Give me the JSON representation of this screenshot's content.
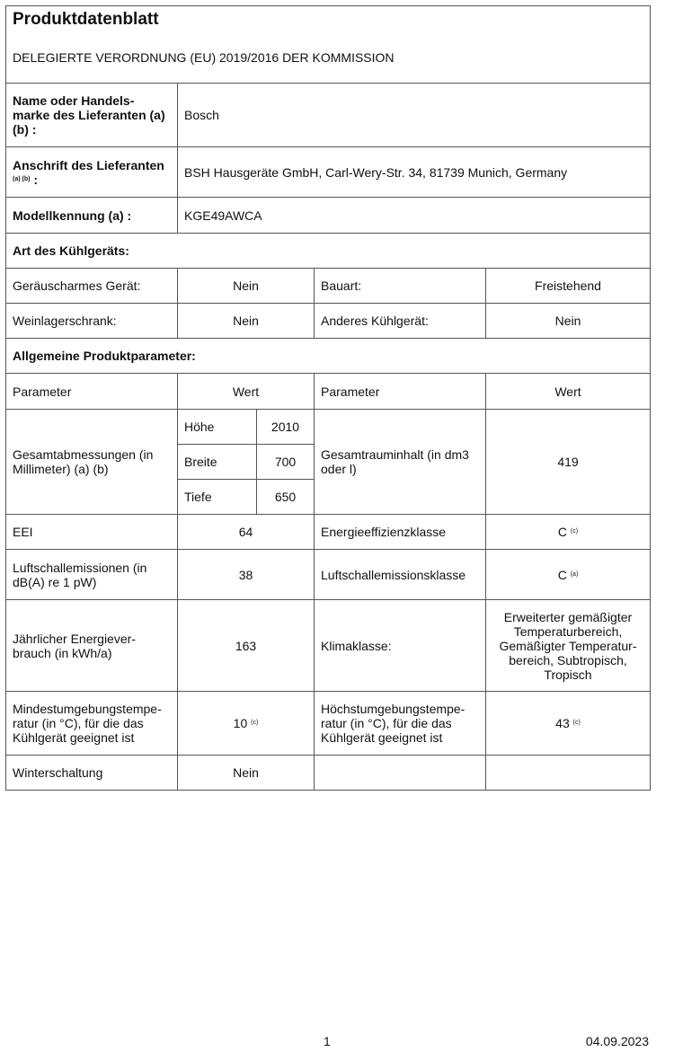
{
  "header": {
    "title": "Produktdatenblatt",
    "subtitle": "DELEGIERTE VERORDNUNG (EU) 2019/2016 DER KOMMISSION"
  },
  "supplier": {
    "name_label": "Name oder Handels-marke des Lieferanten (a) (b) :",
    "name_value": "Bosch",
    "address_label": "Anschrift des Lieferanten",
    "address_sup": "(a) (b)",
    "address_colon": ":",
    "address_value": "BSH Hausgeräte GmbH, Carl-Wery-Str. 34, 81739 Munich, Germany",
    "model_label": "Modellkennung (a) :",
    "model_value": "KGE49AWCA"
  },
  "type_section": {
    "heading": "Art des Kühlgeräts:",
    "rows": [
      {
        "l1": "Geräuscharmes Gerät:",
        "v1": "Nein",
        "l2": "Bauart:",
        "v2": "Freistehend"
      },
      {
        "l1": "Weinlagerschrank:",
        "v1": "Nein",
        "l2": "Anderes Kühlgerät:",
        "v2": "Nein"
      }
    ]
  },
  "params": {
    "heading": "Allgemeine Produktparameter:",
    "col_param": "Parameter",
    "col_value": "Wert",
    "dimensions": {
      "label": "Gesamtabmessungen (in Millimeter) (a) (b)",
      "items": [
        {
          "name": "Höhe",
          "value": "2010"
        },
        {
          "name": "Breite",
          "value": "700"
        },
        {
          "name": "Tiefe",
          "value": "650"
        }
      ]
    },
    "volume": {
      "label": "Gesamtrauminhalt (in dm3 oder l)",
      "value": "419"
    },
    "eei": {
      "label": "EEI",
      "value": "64"
    },
    "energy_class": {
      "label": "Energieeffizienzklasse",
      "value": "C",
      "sup": "(c)"
    },
    "noise": {
      "label": "Luftschallemissionen (in dB(A) re 1 pW)",
      "value": "38"
    },
    "noise_class": {
      "label": "Luftschallemissionsklasse",
      "value": "C",
      "sup": "(a)"
    },
    "consumption": {
      "label": "Jährlicher Energiever-brauch (in kWh/a)",
      "value": "163"
    },
    "climate": {
      "label": "Klimaklasse:",
      "value": "Erweiterter gemäßigter Temperaturbereich, Gemäßigter Temperatur-bereich, Subtropisch, Tropisch"
    },
    "min_temp": {
      "label": "Mindestumgebungstempe-ratur (in °C), für die das Kühlgerät geeignet ist",
      "value": "10",
      "sup": "(c)"
    },
    "max_temp": {
      "label": "Höchstumgebungstempe-ratur (in °C), für die das Kühlgerät geeignet ist",
      "value": "43",
      "sup": "(c)"
    },
    "winter": {
      "label": "Winterschaltung",
      "value": "Nein"
    }
  },
  "footer": {
    "page": "1",
    "date": "04.09.2023"
  }
}
